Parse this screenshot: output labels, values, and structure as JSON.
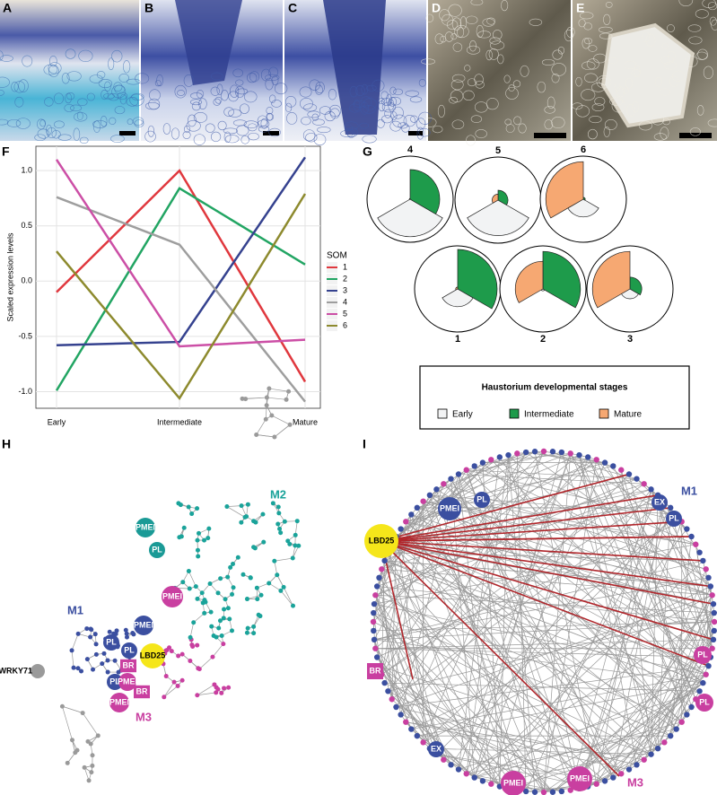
{
  "panel_labels": [
    "A",
    "B",
    "C",
    "D",
    "E",
    "F",
    "G",
    "H",
    "I"
  ],
  "chart_data": [
    {
      "type": "line",
      "y_label": "Scaled expression levels",
      "legend_title": "SOM",
      "categories": [
        "Early",
        "Intermediate",
        "Mature"
      ],
      "series": [
        {
          "name": "1",
          "color": "#e0383e",
          "values": [
            -0.1,
            1.0,
            -0.91
          ]
        },
        {
          "name": "2",
          "color": "#22a563",
          "values": [
            -0.99,
            0.84,
            0.15
          ]
        },
        {
          "name": "3",
          "color": "#35428f",
          "values": [
            -0.58,
            -0.55,
            1.12
          ]
        },
        {
          "name": "4",
          "color": "#9e9e9e",
          "values": [
            0.76,
            0.33,
            -1.09
          ]
        },
        {
          "name": "5",
          "color": "#cc4fa6",
          "values": [
            1.1,
            -0.59,
            -0.53
          ]
        },
        {
          "name": "6",
          "color": "#8d8a2e",
          "values": [
            0.27,
            -1.06,
            0.79
          ]
        }
      ],
      "ylim": [
        -1.15,
        1.22
      ],
      "yticks": [
        {
          "value": -1,
          "label": "-1.0"
        },
        {
          "value": -0.5,
          "label": "-0.5"
        },
        {
          "value": 0,
          "label": "0.0"
        },
        {
          "value": 0.5,
          "label": "0.5"
        },
        {
          "value": 1,
          "label": "1.0"
        }
      ],
      "grid": true
    },
    {
      "type": "rose",
      "title": "Haustorium developmental stages",
      "categories": [
        "Early",
        "Intermediate",
        "Mature"
      ],
      "colors": [
        "#f2f3f4",
        "#1e9b4b",
        "#f6a872"
      ],
      "rlim": [
        0,
        1
      ],
      "charts": [
        {
          "name": "4",
          "values": [
            0.95,
            0.75,
            0.02
          ]
        },
        {
          "name": "5",
          "values": [
            0.9,
            0.25,
            0.15
          ]
        },
        {
          "name": "6",
          "values": [
            0.45,
            0.05,
            0.95
          ]
        },
        {
          "name": "1",
          "values": [
            0.45,
            1.0,
            0.05
          ]
        },
        {
          "name": "2",
          "values": [
            0.05,
            0.95,
            0.7
          ]
        },
        {
          "name": "3",
          "values": [
            0.25,
            0.3,
            0.95
          ]
        }
      ]
    }
  ],
  "network_h": {
    "modules": [
      {
        "name": "M2",
        "color": "#1aa39a"
      },
      {
        "name": "M1",
        "color": "#3b4fa0"
      },
      {
        "name": "M3",
        "color": "#c93fa0"
      }
    ],
    "nodes": [
      {
        "label": "PMEI",
        "color": "#1a9a96"
      },
      {
        "label": "PL",
        "color": "#1a9a96"
      },
      {
        "label": "PMEI",
        "color": "#c93fa0"
      },
      {
        "label": "PMEI",
        "color": "#3b4fa0"
      },
      {
        "label": "PL",
        "color": "#3b4fa0"
      },
      {
        "label": "PL",
        "color": "#3b4fa0"
      },
      {
        "label": "LBD25",
        "color": "#f5e61a"
      },
      {
        "label": "BR",
        "color": "#c93fa0"
      },
      {
        "label": "PL",
        "color": "#3b4fa0"
      },
      {
        "label": "PMEI",
        "color": "#c93fa0"
      },
      {
        "label": "PMEI",
        "color": "#c93fa0"
      },
      {
        "label": "BR",
        "color": "#c93fa0"
      },
      {
        "label": "WRKY71",
        "color": "#9a9a9a"
      }
    ]
  },
  "network_i": {
    "modules": [
      {
        "name": "M1",
        "color": "#3b4fa0"
      },
      {
        "name": "M3",
        "color": "#c93fa0"
      }
    ],
    "nodes": [
      {
        "label": "PMEI",
        "color": "#3b4fa0"
      },
      {
        "label": "PL",
        "color": "#3b4fa0"
      },
      {
        "label": "EX",
        "color": "#3b4fa0"
      },
      {
        "label": "PL",
        "color": "#3b4fa0"
      },
      {
        "label": "LBD25",
        "color": "#f5e61a"
      },
      {
        "label": "PL",
        "color": "#c93fa0"
      },
      {
        "label": "PL",
        "color": "#c93fa0"
      },
      {
        "label": "BR",
        "color": "#c93fa0"
      },
      {
        "label": "EX",
        "color": "#3b4fa0"
      },
      {
        "label": "PMEI",
        "color": "#c93fa0"
      },
      {
        "label": "PMEI",
        "color": "#c93fa0"
      }
    ]
  }
}
